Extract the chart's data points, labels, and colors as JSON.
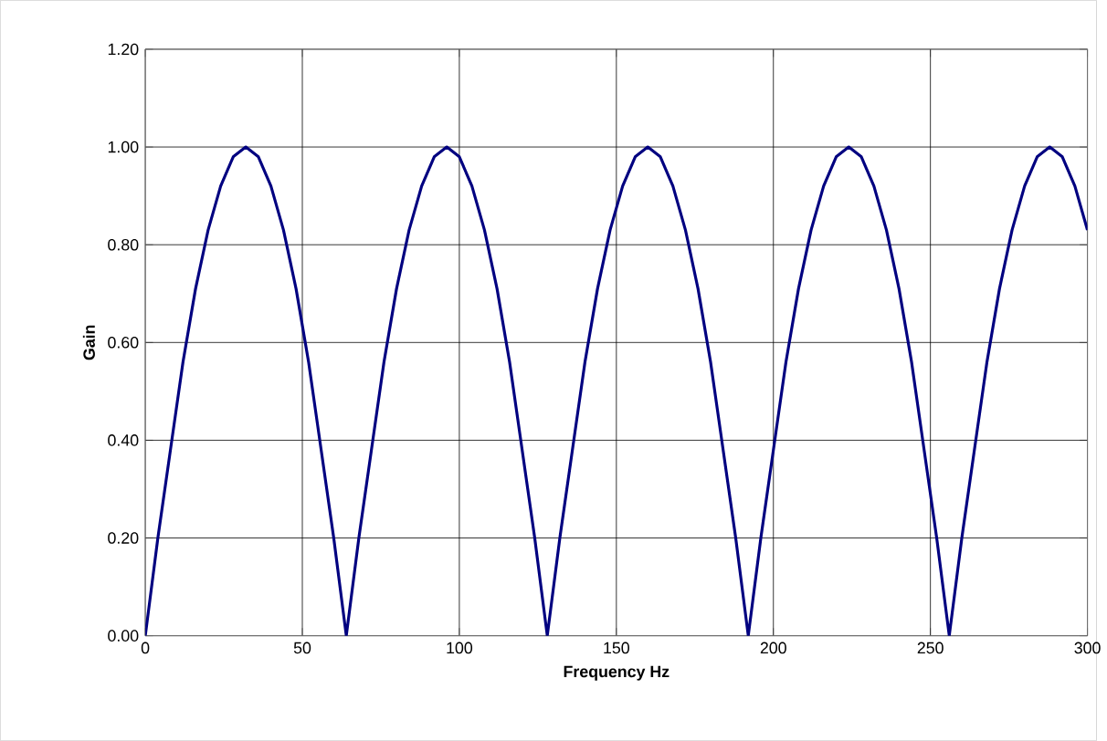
{
  "chart_data": {
    "type": "line",
    "xlabel": "Frequency Hz",
    "ylabel": "Gain",
    "x": [
      0,
      4,
      8,
      12,
      16,
      20,
      24,
      28,
      32,
      36,
      40,
      44,
      48,
      52,
      56,
      60,
      64,
      68,
      72,
      76,
      80,
      84,
      88,
      92,
      96,
      100,
      104,
      108,
      112,
      116,
      120,
      124,
      128,
      132,
      136,
      140,
      144,
      148,
      152,
      156,
      160,
      164,
      168,
      172,
      176,
      180,
      184,
      188,
      192,
      196,
      200,
      204,
      208,
      212,
      216,
      220,
      224,
      228,
      232,
      236,
      240,
      244,
      248,
      252,
      256,
      260,
      264,
      268,
      272,
      276,
      280,
      284,
      288,
      292,
      296,
      300
    ],
    "series": [
      {
        "color": "#000080",
        "values": [
          0,
          0.2,
          0.38,
          0.56,
          0.71,
          0.83,
          0.92,
          0.98,
          1.0,
          0.98,
          0.92,
          0.83,
          0.71,
          0.56,
          0.38,
          0.2,
          0,
          0.2,
          0.38,
          0.56,
          0.71,
          0.83,
          0.92,
          0.98,
          1.0,
          0.98,
          0.92,
          0.83,
          0.71,
          0.56,
          0.38,
          0.2,
          0,
          0.2,
          0.38,
          0.56,
          0.71,
          0.83,
          0.92,
          0.98,
          1.0,
          0.98,
          0.92,
          0.83,
          0.71,
          0.56,
          0.38,
          0.2,
          0,
          0.2,
          0.38,
          0.56,
          0.71,
          0.83,
          0.92,
          0.98,
          1.0,
          0.98,
          0.92,
          0.83,
          0.71,
          0.56,
          0.38,
          0.2,
          0,
          0.2,
          0.38,
          0.56,
          0.71,
          0.83,
          0.92,
          0.98,
          1.0,
          0.98,
          0.92,
          0.83
        ]
      }
    ],
    "xlim": [
      0,
      300
    ],
    "ylim": [
      0,
      1.2
    ],
    "xticks": [
      0,
      50,
      100,
      150,
      200,
      250,
      300
    ],
    "yticks": [
      {
        "value": 0,
        "label": "0.00"
      },
      {
        "value": 0.2,
        "label": "0.20"
      },
      {
        "value": 0.4,
        "label": "0.40"
      },
      {
        "value": 0.6,
        "label": "0.60"
      },
      {
        "value": 0.8,
        "label": "0.80"
      },
      {
        "value": 1.0,
        "label": "1.00"
      },
      {
        "value": 1.2,
        "label": "1.20"
      }
    ],
    "grid": true,
    "marker": "none",
    "line_style": "solid"
  }
}
